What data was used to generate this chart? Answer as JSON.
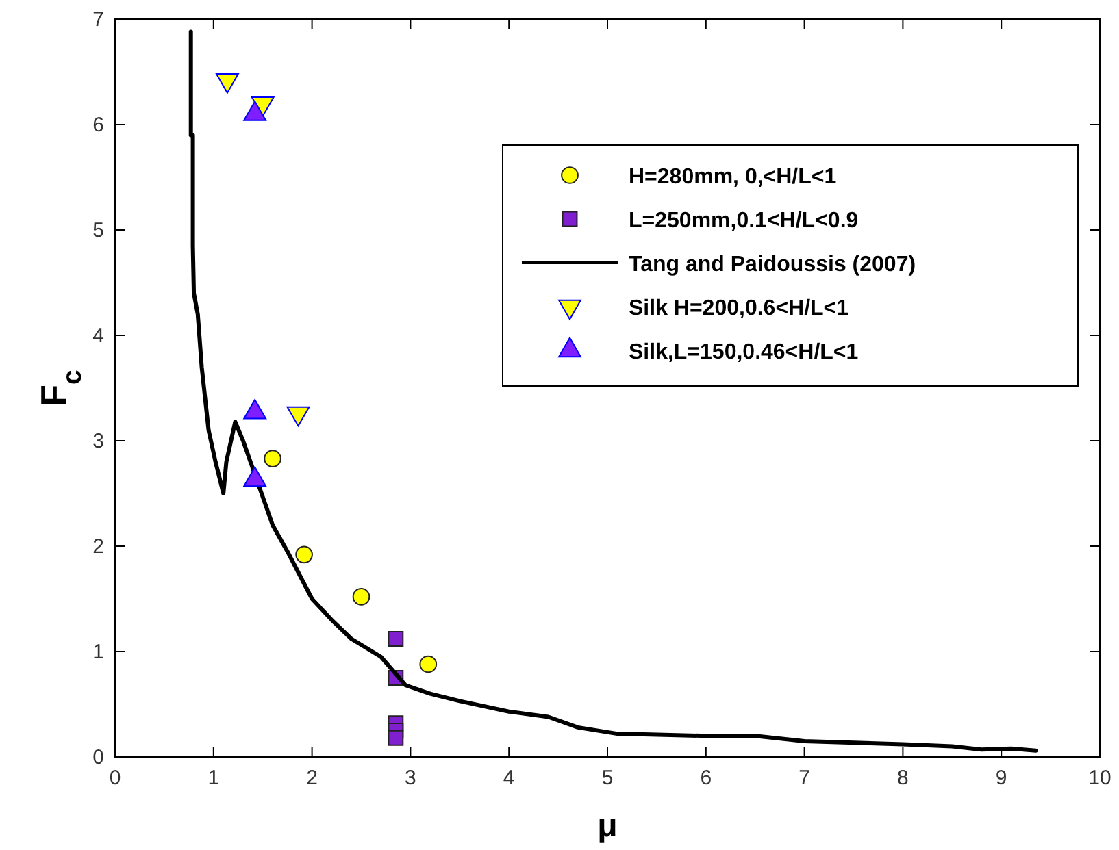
{
  "chart_data": {
    "type": "scatter",
    "xlabel": "μ",
    "ylabel": "F$_{c}$",
    "xlim": [
      0,
      10
    ],
    "ylim": [
      0,
      7
    ],
    "xticks": [
      0,
      1,
      2,
      3,
      4,
      5,
      6,
      7,
      8,
      9,
      10
    ],
    "yticks": [
      0,
      1,
      2,
      3,
      4,
      5,
      6,
      7
    ],
    "grid": false,
    "legend": "top right",
    "series": [
      {
        "name": "H=280mm, 0,<H/L<1",
        "marker": "circle",
        "color": "#ffff00",
        "x": [
          1.6,
          1.92,
          2.5,
          3.18
        ],
        "values": [
          2.83,
          1.92,
          1.52,
          0.88
        ]
      },
      {
        "name": "L=250mm,0.1<H/L<0.9",
        "marker": "square",
        "color": "#7f1fd0",
        "x": [
          2.85,
          2.85,
          2.85,
          2.85,
          2.85
        ],
        "values": [
          1.12,
          0.75,
          0.32,
          0.25,
          0.18
        ]
      },
      {
        "name": "Tang and Paidoussis (2007)",
        "type": "line",
        "line_style": "solid",
        "color": "#000000",
        "x": [
          0.77,
          0.77,
          0.79,
          0.79,
          0.8,
          0.84,
          0.88,
          0.95,
          1.02,
          1.1,
          1.13,
          1.22,
          1.3,
          1.45,
          1.6,
          1.75,
          2,
          2.2,
          2.4,
          2.7,
          2.95,
          3.2,
          3.5,
          4,
          4.4,
          4.7,
          5.1,
          6,
          6.5,
          7,
          8,
          8.5,
          8.8,
          9.1,
          9.35
        ],
        "values": [
          6.88,
          5.9,
          5.9,
          4.85,
          4.4,
          4.2,
          3.7,
          3.1,
          2.8,
          2.5,
          2.8,
          3.18,
          3.0,
          2.6,
          2.2,
          1.95,
          1.5,
          1.3,
          1.12,
          0.95,
          0.68,
          0.6,
          0.53,
          0.43,
          0.38,
          0.28,
          0.22,
          0.2,
          0.2,
          0.15,
          0.12,
          0.1,
          0.07,
          0.08,
          0.06
        ]
      },
      {
        "name": "Silk H=200,0.6<H/L<1",
        "marker": "triangle-down",
        "color": "#ffff00",
        "x": [
          1.14,
          1.5,
          1.86
        ],
        "values": [
          6.42,
          6.2,
          3.26
        ]
      },
      {
        "name": "Silk,L=150,0.46<H/L<1",
        "marker": "triangle",
        "color": "#7f1fff",
        "x": [
          1.42,
          1.42,
          1.42
        ],
        "values": [
          6.1,
          3.27,
          2.63
        ]
      }
    ]
  }
}
